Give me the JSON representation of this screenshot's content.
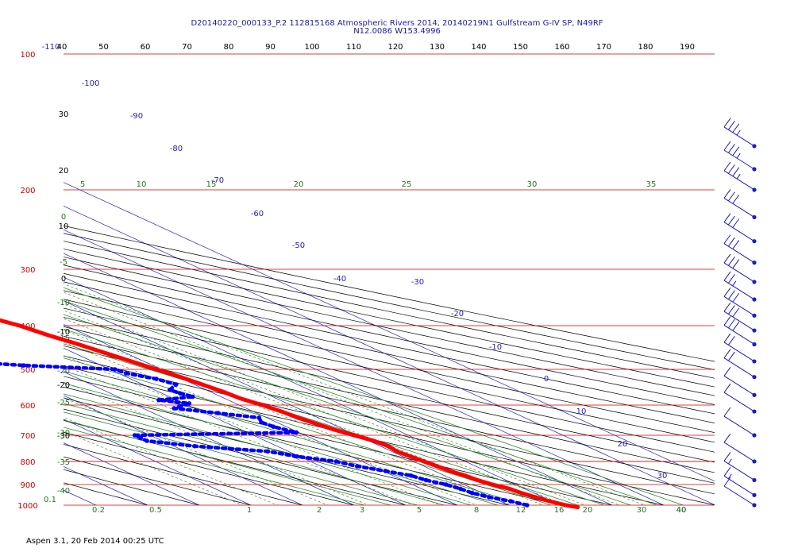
{
  "header": {
    "title_line1": "D20140220_000133_P.2 112815168 Atmospheric Rivers 2014, 20140219N1 Gulfstream G-IV SP, N49RF",
    "title_line2": "N12.0086 W153.4996"
  },
  "footer": {
    "text": "Aspen 3.1, 20 Feb 2014  00:25 UTC"
  },
  "colors": {
    "temperature": "#ff0000",
    "dewpoint": "#0000ff",
    "isobar": "#cc0000",
    "isotherm": "#2222bb",
    "dry_adiabat": "#000000",
    "mixing_ratio": "#227722",
    "moist_adiabat": "#2a8a2a",
    "wind_barb": "#1a1acc"
  },
  "chart_data": {
    "type": "skew-t",
    "xlabel": "",
    "ylabel": "",
    "pressure_levels": [
      100,
      200,
      300,
      400,
      500,
      600,
      700,
      800,
      900,
      1000
    ],
    "top_axis_labels": [
      "-110",
      "40",
      "50",
      "60",
      "70",
      "80",
      "90",
      "100",
      "110",
      "120",
      "130",
      "140",
      "150",
      "160",
      "170",
      "180",
      "190"
    ],
    "isotherm_labels": [
      "-100",
      "-90",
      "-80",
      "-70",
      "-60",
      "-50",
      "-40",
      "-30",
      "-20",
      "-10",
      "0",
      "10",
      "20",
      "30",
      "40"
    ],
    "left_labels": [
      "30",
      "20",
      "10",
      "0",
      "-10",
      "-20",
      "-30"
    ],
    "mixing_ratio_left_labels": [
      "0",
      "-5",
      "-10",
      "-15",
      "-20",
      "-25",
      "-30",
      "-35",
      "-40"
    ],
    "moist_adiabat_labels": [
      "5",
      "10",
      "15",
      "20",
      "25",
      "30",
      "35"
    ],
    "bottom_mixing_labels": [
      "0.1",
      "0.2",
      "0.5",
      "1",
      "2",
      "3",
      "5",
      "8",
      "12",
      "16",
      "20",
      "30",
      "40"
    ],
    "series": [
      {
        "name": "temperature",
        "pressure": [
          206,
          225,
          250,
          275,
          300,
          320,
          340,
          360,
          380,
          400,
          420,
          440,
          460,
          480,
          500,
          520,
          540,
          560,
          580,
          600,
          620,
          640,
          660,
          680,
          700,
          720,
          740,
          760,
          780,
          800,
          820,
          840,
          860,
          880,
          900,
          920,
          940,
          960,
          980,
          1000,
          1010
        ],
        "temperature": [
          -40.5,
          -38.5,
          -34.5,
          -29.5,
          -24.5,
          -20.5,
          -17.5,
          -14.5,
          -12.0,
          -9.0,
          -7.5,
          -5.5,
          -4.0,
          -2.5,
          -1.0,
          0.5,
          1.5,
          2.5,
          3.0,
          4.5,
          5.5,
          6.0,
          7.0,
          8.0,
          9.5,
          11.0,
          11.5,
          11.0,
          11.5,
          12.0,
          12.5,
          13.0,
          14.0,
          14.5,
          15.5,
          17.0,
          17.5,
          18.5,
          19.5,
          21.0,
          22.5
        ]
      },
      {
        "name": "dewpoint",
        "pressure": [
          200,
          215,
          230,
          260,
          290,
          310,
          330,
          345,
          360,
          370,
          380,
          390,
          395,
          400,
          405,
          410,
          415,
          420,
          425,
          430,
          440,
          450,
          460,
          470,
          480,
          490,
          500,
          510,
          525,
          540,
          555,
          565,
          575,
          585,
          595,
          610,
          625,
          640,
          655,
          670,
          690,
          700,
          710,
          720,
          740,
          760,
          780,
          800,
          820,
          840,
          860,
          880,
          900,
          920,
          940,
          960,
          980,
          1000
        ],
        "dewpoint": [
          -75.0,
          -75.5,
          -76.0,
          -74.0,
          -70.5,
          -68.5,
          -69.0,
          -65.0,
          -57.5,
          -53.0,
          -50.0,
          -45.0,
          -42.0,
          -44.0,
          -45.5,
          -43.0,
          -45.5,
          -44.0,
          -49.0,
          -48.5,
          -51.0,
          -49.0,
          -38.0,
          -37.0,
          -36.0,
          -25.0,
          -9.0,
          -8.5,
          -5.0,
          -3.5,
          -7.0,
          -6.5,
          -5.5,
          -13.5,
          -9.0,
          -14.0,
          -7.5,
          -1.5,
          -3.0,
          -2.5,
          -0.5,
          -33.0,
          -33.0,
          -33.0,
          -26.0,
          -14.0,
          -10.5,
          -5.0,
          -3.0,
          0.5,
          3.5,
          4.5,
          6.5,
          7.5,
          8.0,
          9.5,
          12.0,
          13.5
        ]
      }
    ],
    "wind_barbs": [
      {
        "pressure": 160,
        "barbs": 3.5
      },
      {
        "pressure": 180,
        "barbs": 3.5
      },
      {
        "pressure": 200,
        "barbs": 3.5
      },
      {
        "pressure": 230,
        "barbs": 3
      },
      {
        "pressure": 260,
        "barbs": 3
      },
      {
        "pressure": 290,
        "barbs": 3
      },
      {
        "pressure": 320,
        "barbs": 3
      },
      {
        "pressure": 350,
        "barbs": 2.5
      },
      {
        "pressure": 380,
        "barbs": 3
      },
      {
        "pressure": 410,
        "barbs": 3
      },
      {
        "pressure": 440,
        "barbs": 3
      },
      {
        "pressure": 480,
        "barbs": 2
      },
      {
        "pressure": 520,
        "barbs": 2
      },
      {
        "pressure": 570,
        "barbs": 1
      },
      {
        "pressure": 620,
        "barbs": 1
      },
      {
        "pressure": 700,
        "barbs": 1
      },
      {
        "pressure": 800,
        "barbs": 1
      },
      {
        "pressure": 880,
        "barbs": 1.5
      },
      {
        "pressure": 950,
        "barbs": 1.5
      },
      {
        "pressure": 1000,
        "barbs": 1
      }
    ]
  }
}
